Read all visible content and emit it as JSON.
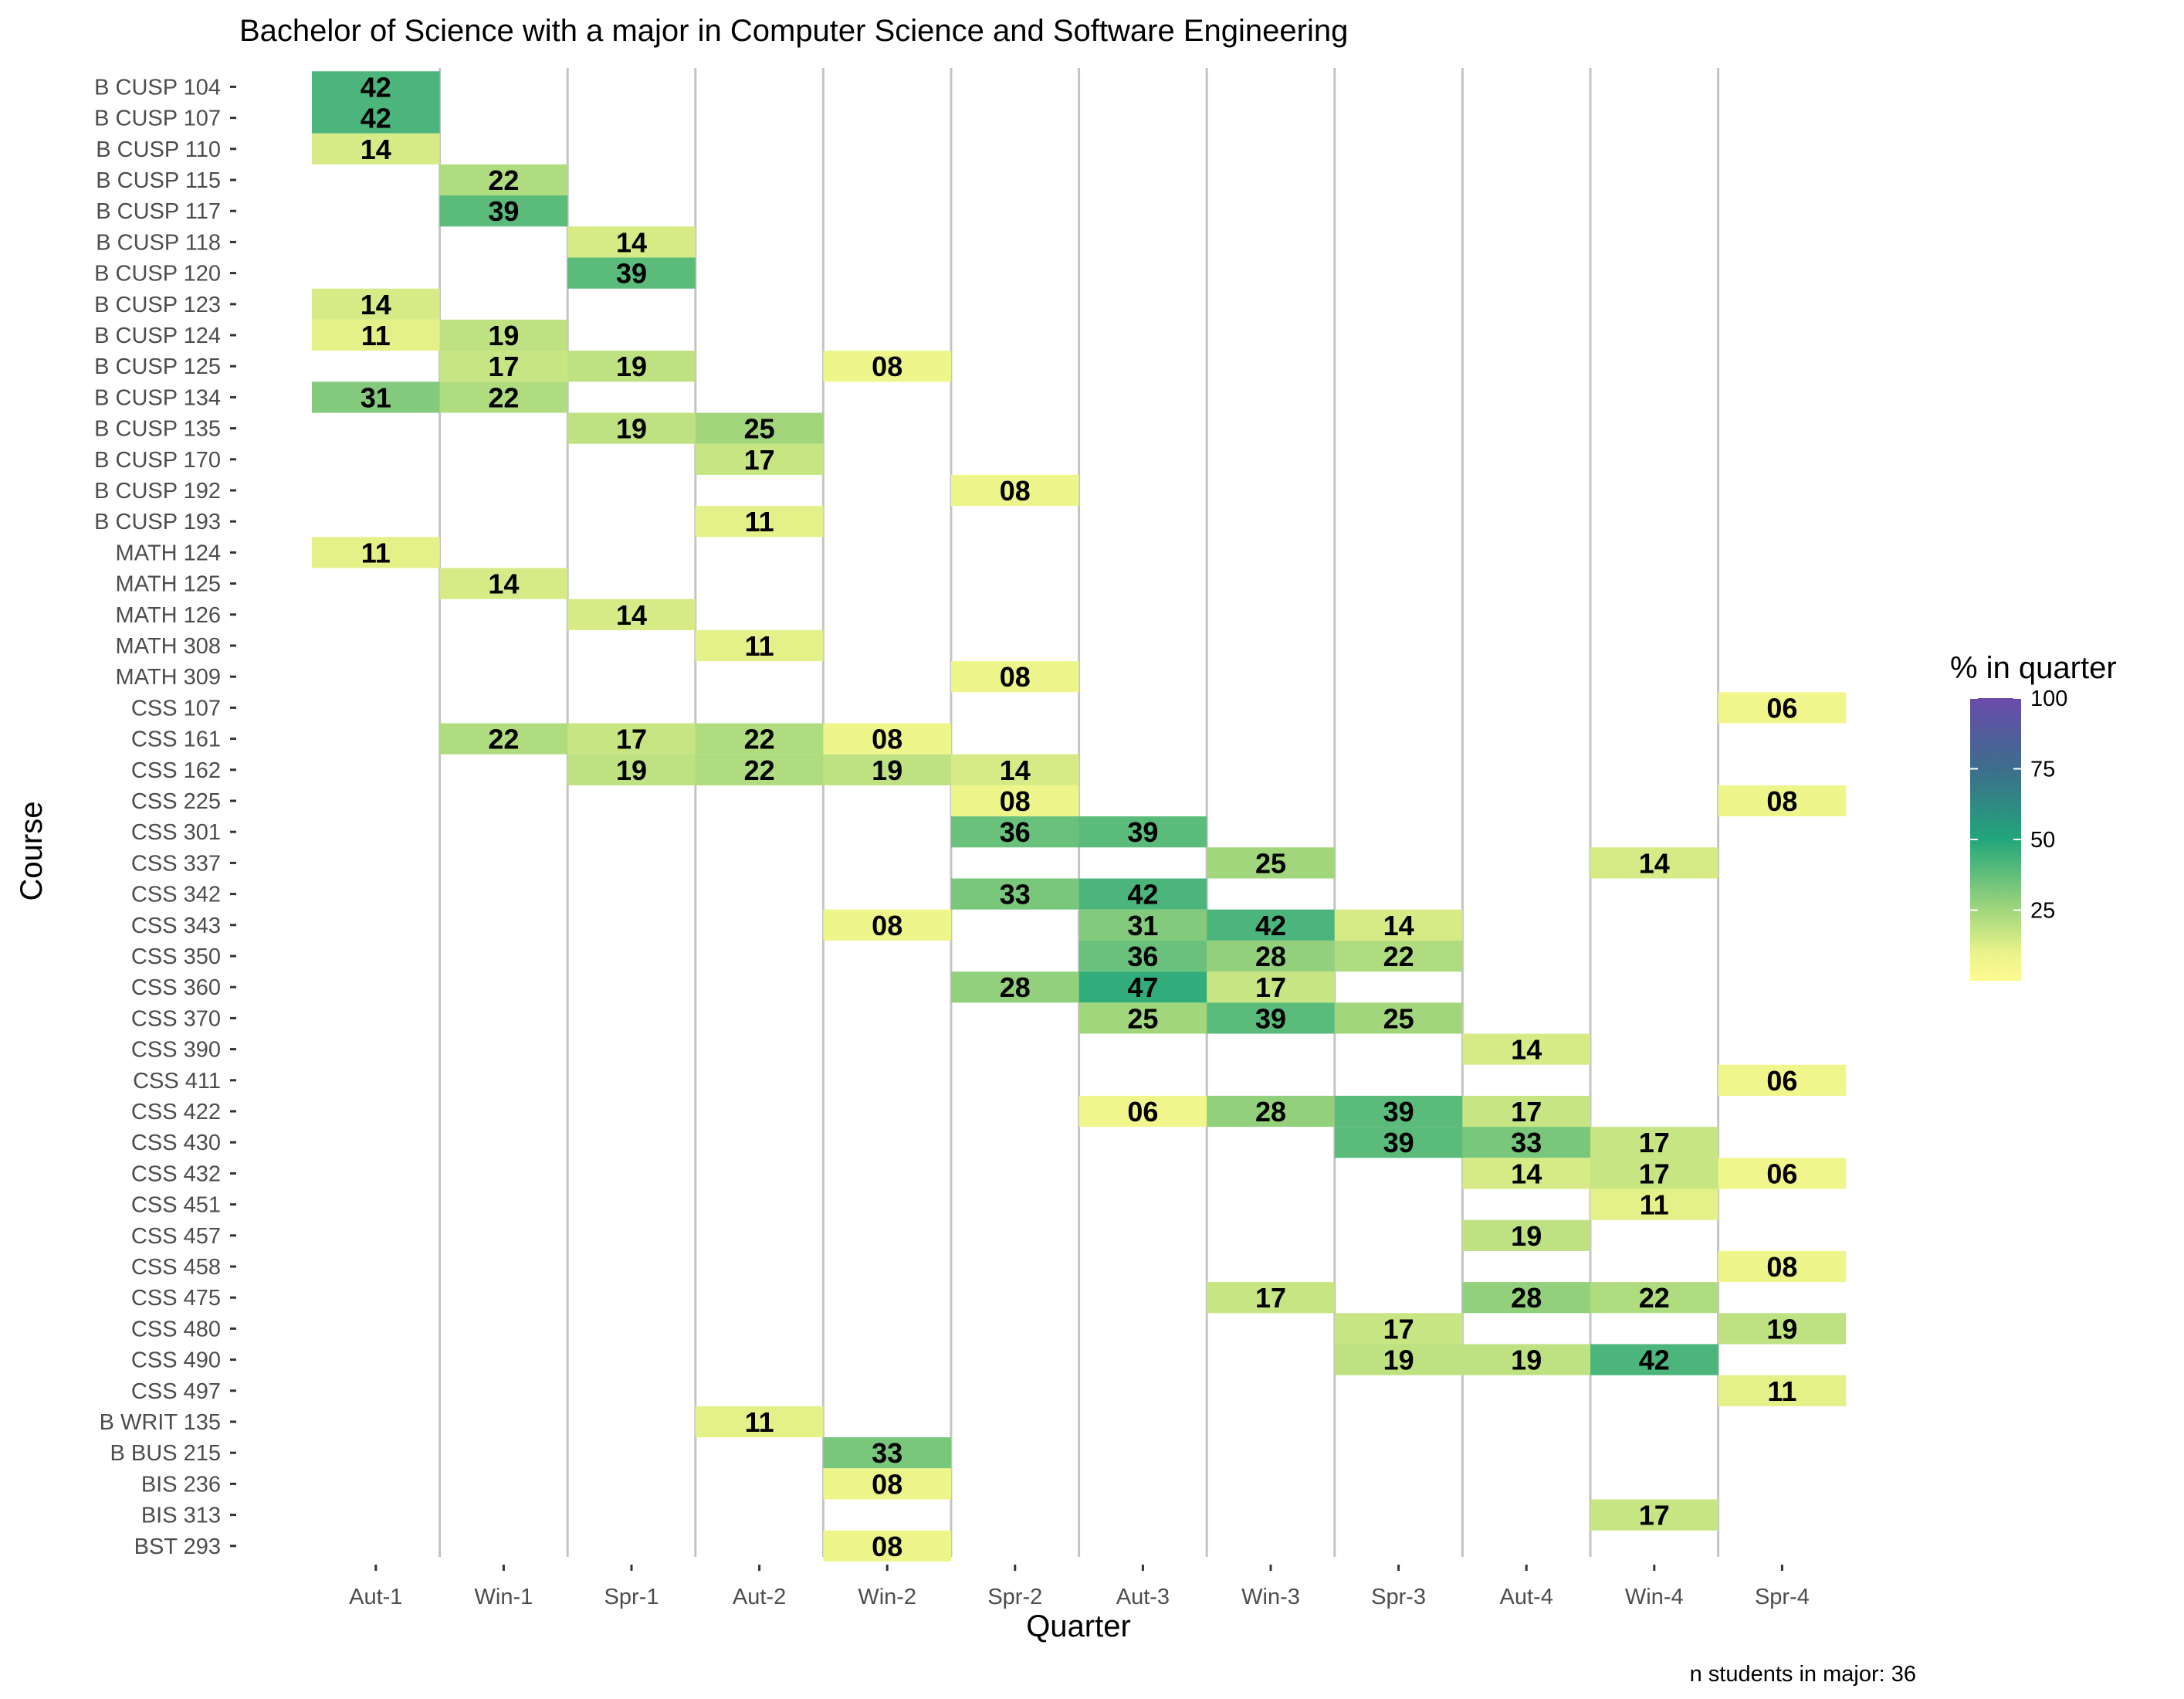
{
  "chart_data": {
    "type": "heatmap",
    "title": "Bachelor of Science with a major in Computer Science and Software Engineering",
    "xlabel": "Quarter",
    "ylabel": "Course",
    "caption": "n students in major: 36",
    "legend": {
      "title": "% in quarter",
      "ticks": [
        "25",
        "50",
        "75",
        "100"
      ],
      "range": [
        0,
        100
      ],
      "placement": "right",
      "colors": [
        "#fdfb8f",
        "#a1d67c",
        "#22a67a",
        "#3c6e8c",
        "#6a4aac"
      ]
    },
    "quarters": [
      "Aut-1",
      "Win-1",
      "Spr-1",
      "Aut-2",
      "Win-2",
      "Spr-2",
      "Aut-3",
      "Win-3",
      "Spr-3",
      "Aut-4",
      "Win-4",
      "Spr-4"
    ],
    "courses": [
      "B CUSP 104",
      "B CUSP 107",
      "B CUSP 110",
      "B CUSP 115",
      "B CUSP 117",
      "B CUSP 118",
      "B CUSP 120",
      "B CUSP 123",
      "B CUSP 124",
      "B CUSP 125",
      "B CUSP 134",
      "B CUSP 135",
      "B CUSP 170",
      "B CUSP 192",
      "B CUSP 193",
      "MATH 124",
      "MATH 125",
      "MATH 126",
      "MATH 308",
      "MATH 309",
      "CSS 107",
      "CSS 161",
      "CSS 162",
      "CSS 225",
      "CSS 301",
      "CSS 337",
      "CSS 342",
      "CSS 343",
      "CSS 350",
      "CSS 360",
      "CSS 370",
      "CSS 390",
      "CSS 411",
      "CSS 422",
      "CSS 430",
      "CSS 432",
      "CSS 451",
      "CSS 457",
      "CSS 458",
      "CSS 475",
      "CSS 480",
      "CSS 490",
      "CSS 497",
      "B WRIT 135",
      "B BUS 215",
      "BIS 236",
      "BIS 313",
      "BST 293"
    ],
    "cells": [
      {
        "course": "B CUSP 104",
        "quarter": "Aut-1",
        "value": 42,
        "label": "42"
      },
      {
        "course": "B CUSP 107",
        "quarter": "Aut-1",
        "value": 42,
        "label": "42"
      },
      {
        "course": "B CUSP 110",
        "quarter": "Aut-1",
        "value": 14,
        "label": "14"
      },
      {
        "course": "B CUSP 115",
        "quarter": "Win-1",
        "value": 22,
        "label": "22"
      },
      {
        "course": "B CUSP 117",
        "quarter": "Win-1",
        "value": 39,
        "label": "39"
      },
      {
        "course": "B CUSP 118",
        "quarter": "Spr-1",
        "value": 14,
        "label": "14"
      },
      {
        "course": "B CUSP 120",
        "quarter": "Spr-1",
        "value": 39,
        "label": "39"
      },
      {
        "course": "B CUSP 123",
        "quarter": "Aut-1",
        "value": 14,
        "label": "14"
      },
      {
        "course": "B CUSP 124",
        "quarter": "Aut-1",
        "value": 11,
        "label": "11"
      },
      {
        "course": "B CUSP 124",
        "quarter": "Win-1",
        "value": 19,
        "label": "19"
      },
      {
        "course": "B CUSP 125",
        "quarter": "Win-1",
        "value": 17,
        "label": "17"
      },
      {
        "course": "B CUSP 125",
        "quarter": "Spr-1",
        "value": 19,
        "label": "19"
      },
      {
        "course": "B CUSP 125",
        "quarter": "Win-2",
        "value": 8,
        "label": "08"
      },
      {
        "course": "B CUSP 134",
        "quarter": "Aut-1",
        "value": 31,
        "label": "31"
      },
      {
        "course": "B CUSP 134",
        "quarter": "Win-1",
        "value": 22,
        "label": "22"
      },
      {
        "course": "B CUSP 135",
        "quarter": "Spr-1",
        "value": 19,
        "label": "19"
      },
      {
        "course": "B CUSP 135",
        "quarter": "Aut-2",
        "value": 25,
        "label": "25"
      },
      {
        "course": "B CUSP 170",
        "quarter": "Aut-2",
        "value": 17,
        "label": "17"
      },
      {
        "course": "B CUSP 192",
        "quarter": "Spr-2",
        "value": 8,
        "label": "08"
      },
      {
        "course": "B CUSP 193",
        "quarter": "Aut-2",
        "value": 11,
        "label": "11"
      },
      {
        "course": "MATH 124",
        "quarter": "Aut-1",
        "value": 11,
        "label": "11"
      },
      {
        "course": "MATH 125",
        "quarter": "Win-1",
        "value": 14,
        "label": "14"
      },
      {
        "course": "MATH 126",
        "quarter": "Spr-1",
        "value": 14,
        "label": "14"
      },
      {
        "course": "MATH 308",
        "quarter": "Aut-2",
        "value": 11,
        "label": "11"
      },
      {
        "course": "MATH 309",
        "quarter": "Spr-2",
        "value": 8,
        "label": "08"
      },
      {
        "course": "CSS 107",
        "quarter": "Spr-4",
        "value": 6,
        "label": "06"
      },
      {
        "course": "CSS 161",
        "quarter": "Win-1",
        "value": 22,
        "label": "22"
      },
      {
        "course": "CSS 161",
        "quarter": "Spr-1",
        "value": 17,
        "label": "17"
      },
      {
        "course": "CSS 161",
        "quarter": "Aut-2",
        "value": 22,
        "label": "22"
      },
      {
        "course": "CSS 161",
        "quarter": "Win-2",
        "value": 8,
        "label": "08"
      },
      {
        "course": "CSS 162",
        "quarter": "Spr-1",
        "value": 19,
        "label": "19"
      },
      {
        "course": "CSS 162",
        "quarter": "Aut-2",
        "value": 22,
        "label": "22"
      },
      {
        "course": "CSS 162",
        "quarter": "Win-2",
        "value": 19,
        "label": "19"
      },
      {
        "course": "CSS 162",
        "quarter": "Spr-2",
        "value": 14,
        "label": "14"
      },
      {
        "course": "CSS 225",
        "quarter": "Spr-2",
        "value": 8,
        "label": "08"
      },
      {
        "course": "CSS 225",
        "quarter": "Spr-4",
        "value": 8,
        "label": "08"
      },
      {
        "course": "CSS 301",
        "quarter": "Spr-2",
        "value": 36,
        "label": "36"
      },
      {
        "course": "CSS 301",
        "quarter": "Aut-3",
        "value": 39,
        "label": "39"
      },
      {
        "course": "CSS 337",
        "quarter": "Win-3",
        "value": 25,
        "label": "25"
      },
      {
        "course": "CSS 337",
        "quarter": "Win-4",
        "value": 14,
        "label": "14"
      },
      {
        "course": "CSS 342",
        "quarter": "Spr-2",
        "value": 33,
        "label": "33"
      },
      {
        "course": "CSS 342",
        "quarter": "Aut-3",
        "value": 42,
        "label": "42"
      },
      {
        "course": "CSS 343",
        "quarter": "Win-2",
        "value": 8,
        "label": "08"
      },
      {
        "course": "CSS 343",
        "quarter": "Aut-3",
        "value": 31,
        "label": "31"
      },
      {
        "course": "CSS 343",
        "quarter": "Win-3",
        "value": 42,
        "label": "42"
      },
      {
        "course": "CSS 343",
        "quarter": "Spr-3",
        "value": 14,
        "label": "14"
      },
      {
        "course": "CSS 350",
        "quarter": "Aut-3",
        "value": 36,
        "label": "36"
      },
      {
        "course": "CSS 350",
        "quarter": "Win-3",
        "value": 28,
        "label": "28"
      },
      {
        "course": "CSS 350",
        "quarter": "Spr-3",
        "value": 22,
        "label": "22"
      },
      {
        "course": "CSS 360",
        "quarter": "Spr-2",
        "value": 28,
        "label": "28"
      },
      {
        "course": "CSS 360",
        "quarter": "Aut-3",
        "value": 47,
        "label": "47"
      },
      {
        "course": "CSS 360",
        "quarter": "Win-3",
        "value": 17,
        "label": "17"
      },
      {
        "course": "CSS 370",
        "quarter": "Aut-3",
        "value": 25,
        "label": "25"
      },
      {
        "course": "CSS 370",
        "quarter": "Win-3",
        "value": 39,
        "label": "39"
      },
      {
        "course": "CSS 370",
        "quarter": "Spr-3",
        "value": 25,
        "label": "25"
      },
      {
        "course": "CSS 390",
        "quarter": "Aut-4",
        "value": 14,
        "label": "14"
      },
      {
        "course": "CSS 411",
        "quarter": "Spr-4",
        "value": 6,
        "label": "06"
      },
      {
        "course": "CSS 422",
        "quarter": "Aut-3",
        "value": 6,
        "label": "06"
      },
      {
        "course": "CSS 422",
        "quarter": "Win-3",
        "value": 28,
        "label": "28"
      },
      {
        "course": "CSS 422",
        "quarter": "Spr-3",
        "value": 39,
        "label": "39"
      },
      {
        "course": "CSS 422",
        "quarter": "Aut-4",
        "value": 17,
        "label": "17"
      },
      {
        "course": "CSS 430",
        "quarter": "Spr-3",
        "value": 39,
        "label": "39"
      },
      {
        "course": "CSS 430",
        "quarter": "Aut-4",
        "value": 33,
        "label": "33"
      },
      {
        "course": "CSS 430",
        "quarter": "Win-4",
        "value": 17,
        "label": "17"
      },
      {
        "course": "CSS 432",
        "quarter": "Aut-4",
        "value": 14,
        "label": "14"
      },
      {
        "course": "CSS 432",
        "quarter": "Win-4",
        "value": 17,
        "label": "17"
      },
      {
        "course": "CSS 432",
        "quarter": "Spr-4",
        "value": 6,
        "label": "06"
      },
      {
        "course": "CSS 451",
        "quarter": "Win-4",
        "value": 11,
        "label": "11"
      },
      {
        "course": "CSS 457",
        "quarter": "Aut-4",
        "value": 19,
        "label": "19"
      },
      {
        "course": "CSS 458",
        "quarter": "Spr-4",
        "value": 8,
        "label": "08"
      },
      {
        "course": "CSS 475",
        "quarter": "Win-3",
        "value": 17,
        "label": "17"
      },
      {
        "course": "CSS 475",
        "quarter": "Aut-4",
        "value": 28,
        "label": "28"
      },
      {
        "course": "CSS 475",
        "quarter": "Win-4",
        "value": 22,
        "label": "22"
      },
      {
        "course": "CSS 480",
        "quarter": "Spr-3",
        "value": 17,
        "label": "17"
      },
      {
        "course": "CSS 480",
        "quarter": "Spr-4",
        "value": 19,
        "label": "19"
      },
      {
        "course": "CSS 490",
        "quarter": "Spr-3",
        "value": 19,
        "label": "19"
      },
      {
        "course": "CSS 490",
        "quarter": "Aut-4",
        "value": 19,
        "label": "19"
      },
      {
        "course": "CSS 490",
        "quarter": "Win-4",
        "value": 42,
        "label": "42"
      },
      {
        "course": "CSS 497",
        "quarter": "Spr-4",
        "value": 11,
        "label": "11"
      },
      {
        "course": "B WRIT 135",
        "quarter": "Aut-2",
        "value": 11,
        "label": "11"
      },
      {
        "course": "B BUS 215",
        "quarter": "Win-2",
        "value": 33,
        "label": "33"
      },
      {
        "course": "BIS 236",
        "quarter": "Win-2",
        "value": 8,
        "label": "08"
      },
      {
        "course": "BIS 313",
        "quarter": "Win-4",
        "value": 17,
        "label": "17"
      },
      {
        "course": "BST 293",
        "quarter": "Win-2",
        "value": 8,
        "label": "08"
      }
    ]
  }
}
